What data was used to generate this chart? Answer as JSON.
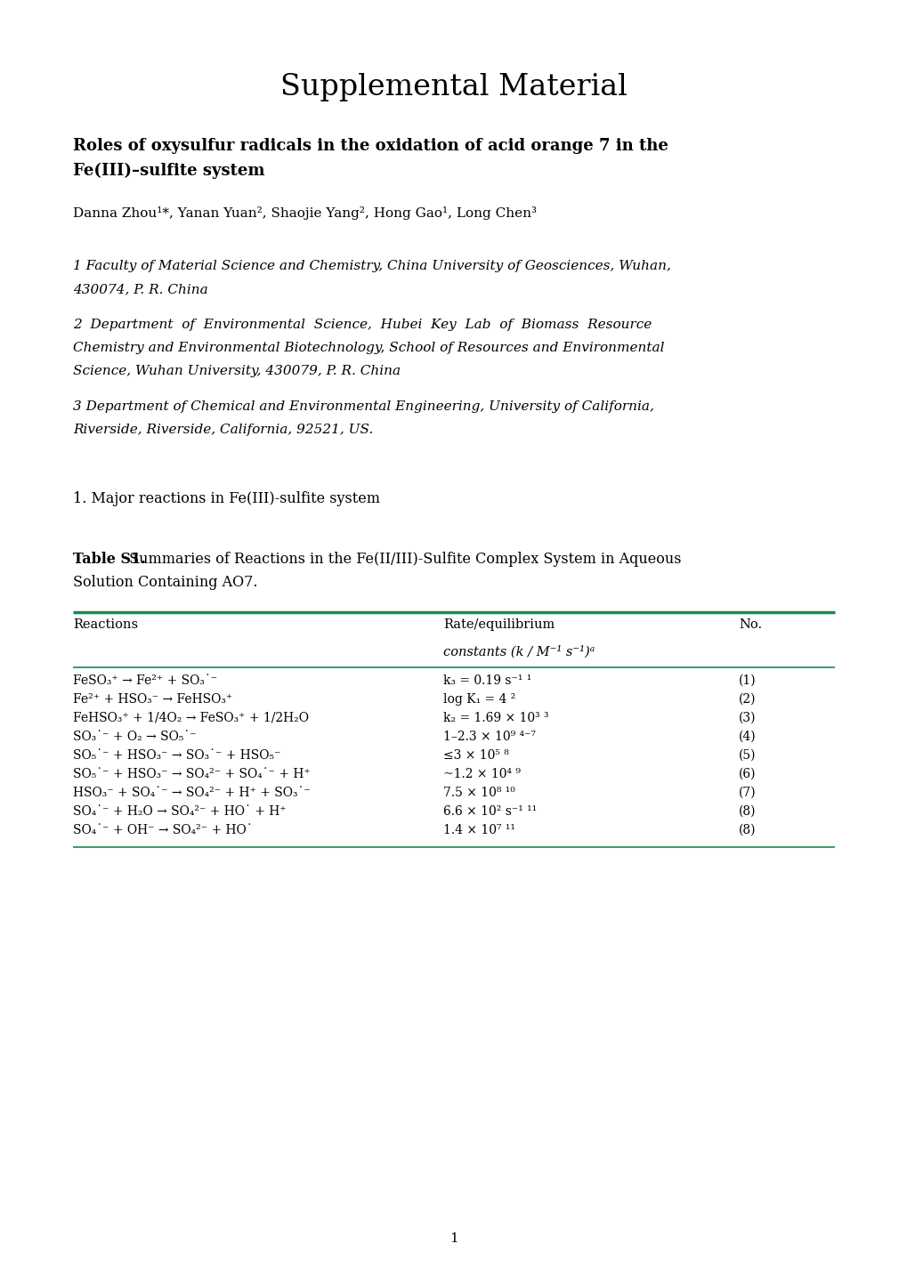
{
  "title": "Supplemental Material",
  "subtitle_line1": "Roles of oxysulfur radicals in the oxidation of acid orange 7 in the",
  "subtitle_line2": "Fe(III)–sulfite system",
  "authors": "Danna Zhou¹*, Yanan Yuan², Shaojie Yang², Hong Gao¹, Long Chen³",
  "affil1_line1": "1 Faculty of Material Science and Chemistry, China University of Geosciences, Wuhan,",
  "affil1_line2": "430074, P. R. China",
  "affil2_line1": "2  Department  of  Environmental  Science,  Hubei  Key  Lab  of  Biomass  Resource",
  "affil2_line2": "Chemistry and Environmental Biotechnology, School of Resources and Environmental",
  "affil2_line3": "Science, Wuhan University, 430079, P. R. China",
  "affil3_line1": "3 Department of Chemical and Environmental Engineering, University of California,",
  "affil3_line2": "Riverside, Riverside, California, 92521, US.",
  "section": "1. Major reactions in Fe(III)-sulfite system",
  "table_caption_bold": "Table S1.",
  "table_caption_rest_line1": " Summaries of Reactions in the Fe(II/III)-Sulfite Complex System in Aqueous",
  "table_caption_rest_line2": "Solution Containing AO7.",
  "col1_header": "Reactions",
  "col2_header": "Rate/equilibrium",
  "col3_header": "No.",
  "col2_subheader": "constants (k / M⁻¹ s⁻¹)ᵃ",
  "reactions": [
    "FeSO₃⁺ → Fe²⁺ + SO₃˙⁻",
    "Fe²⁺ + HSO₃⁻ → FeHSO₃⁺",
    "FeHSO₃⁺ + 1/4O₂ → FeSO₃⁺ + 1/2H₂O",
    "SO₃˙⁻ + O₂ → SO₅˙⁻",
    "SO₅˙⁻ + HSO₃⁻ → SO₃˙⁻ + HSO₅⁻",
    "SO₅˙⁻ + HSO₃⁻ → SO₄²⁻ + SO₄˙⁻ + H⁺",
    "HSO₃⁻ + SO₄˙⁻ → SO₄²⁻ + H⁺ + SO₃˙⁻",
    "SO₄˙⁻ + H₂O → SO₄²⁻ + HO˙ + H⁺",
    "SO₄˙⁻ + OH⁻ → SO₄²⁻ + HO˙"
  ],
  "rates": [
    "k₃ = 0.19 s⁻¹ ¹",
    "log K₁ = 4 ²",
    "k₂ = 1.69 × 10³ ³",
    "1–2.3 × 10⁹ ⁴⁻⁷",
    "≤3 × 10⁵ ⁸",
    "~1.2 × 10⁴ ⁹",
    "7.5 × 10⁸ ¹⁰",
    "6.6 × 10² s⁻¹ ¹¹",
    "1.4 × 10⁷ ¹¹"
  ],
  "numbers": [
    "(1)",
    "(2)",
    "(3)",
    "(4)",
    "(5)",
    "(6)",
    "(7)",
    "(8)",
    "(8)"
  ],
  "page_number": "1",
  "background_color": "#ffffff",
  "text_color": "#000000",
  "table_line_color": "#1a8a4a"
}
